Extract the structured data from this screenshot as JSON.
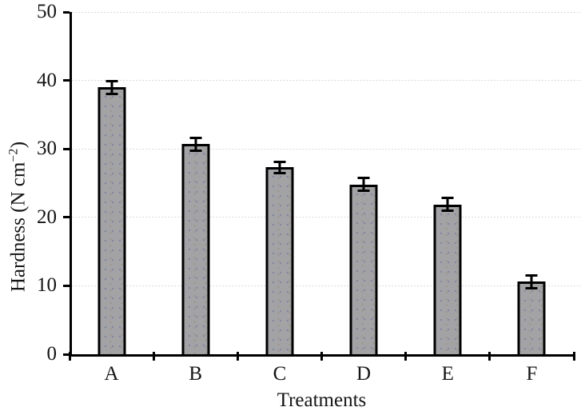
{
  "chart_data": {
    "type": "bar",
    "title": "",
    "categories": [
      "A",
      "B",
      "C",
      "D",
      "E",
      "F"
    ],
    "values": [
      39.0,
      30.7,
      27.3,
      24.8,
      21.9,
      10.6
    ],
    "errors": [
      1.1,
      1.1,
      1.0,
      1.1,
      1.1,
      1.1
    ],
    "xlabel": "Treatments",
    "ylabel": "Hardness (N cm−2)",
    "ylabel_parts": {
      "pre": "Hardness (N cm",
      "sup": "−2",
      "post": ")"
    },
    "ylim": [
      0,
      50
    ],
    "yticks": [
      0,
      10,
      20,
      30,
      40,
      50
    ],
    "grid": "horizontal-dashed-major",
    "legend_position": "none",
    "bar_fill_color": "#a3a3a6",
    "bar_border_color": "#000000",
    "error_bar_color": "#000000",
    "gridline_color": "#d9dae2",
    "axis_color": "#000000",
    "text_color": "#141414",
    "background_color": "#ffffff"
  }
}
